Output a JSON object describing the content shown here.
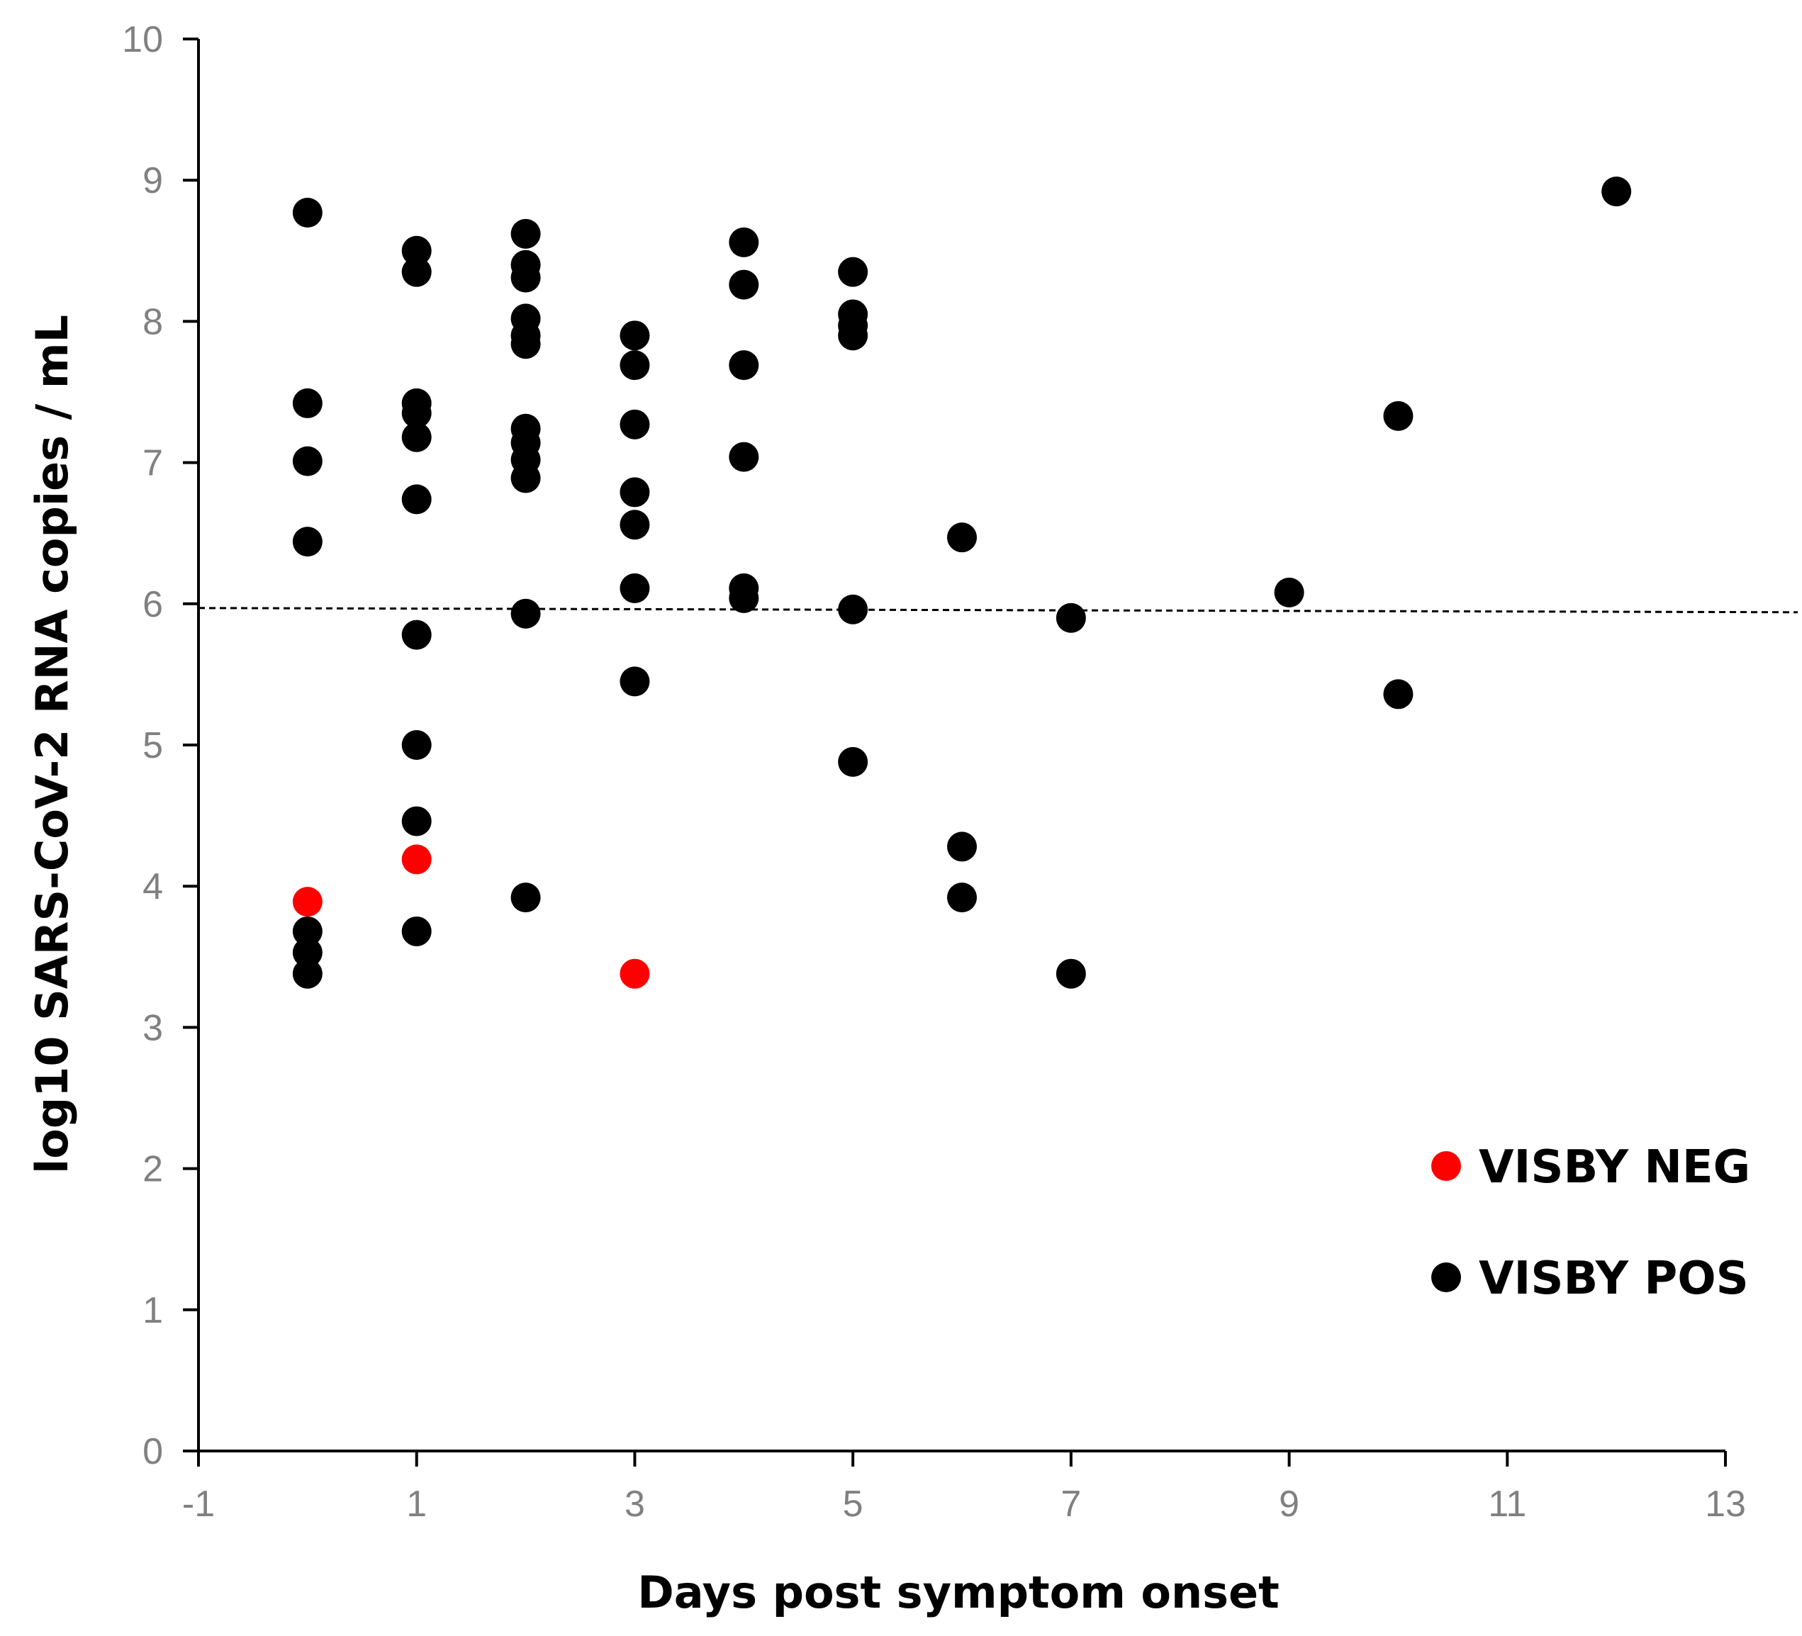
{
  "chart_data": {
    "type": "scatter",
    "title": "",
    "xlabel": "Days post symptom onset",
    "ylabel": "log10 SARS-CoV-2 RNA copies / mL",
    "xlim": [
      -1,
      13
    ],
    "ylim": [
      0,
      10
    ],
    "x_ticks": [
      -1,
      1,
      3,
      5,
      7,
      9,
      11,
      13
    ],
    "y_ticks": [
      0,
      1,
      2,
      3,
      4,
      5,
      6,
      7,
      8,
      9,
      10
    ],
    "grid": false,
    "legend_position": "bottom-right",
    "reference_line": {
      "style": "dashed",
      "y_start": 5.97,
      "y_end": 5.94
    },
    "series": [
      {
        "name": "VISBY NEG",
        "color": "#ff0000",
        "points": [
          {
            "x": 0,
            "y": 3.89
          },
          {
            "x": 1,
            "y": 4.19
          },
          {
            "x": 3,
            "y": 3.38
          }
        ]
      },
      {
        "name": "VISBY POS",
        "color": "#000000",
        "points": [
          {
            "x": 0,
            "y": 8.77
          },
          {
            "x": 0,
            "y": 7.42
          },
          {
            "x": 0,
            "y": 7.01
          },
          {
            "x": 0,
            "y": 6.44
          },
          {
            "x": 0,
            "y": 3.68
          },
          {
            "x": 0,
            "y": 3.53
          },
          {
            "x": 0,
            "y": 3.38
          },
          {
            "x": 1,
            "y": 8.5
          },
          {
            "x": 1,
            "y": 8.35
          },
          {
            "x": 1,
            "y": 7.42
          },
          {
            "x": 1,
            "y": 7.35
          },
          {
            "x": 1,
            "y": 7.18
          },
          {
            "x": 1,
            "y": 6.74
          },
          {
            "x": 1,
            "y": 5.78
          },
          {
            "x": 1,
            "y": 5.0
          },
          {
            "x": 1,
            "y": 4.46
          },
          {
            "x": 1,
            "y": 3.68
          },
          {
            "x": 2,
            "y": 8.62
          },
          {
            "x": 2,
            "y": 8.4
          },
          {
            "x": 2,
            "y": 8.31
          },
          {
            "x": 2,
            "y": 8.02
          },
          {
            "x": 2,
            "y": 7.9
          },
          {
            "x": 2,
            "y": 7.84
          },
          {
            "x": 2,
            "y": 7.24
          },
          {
            "x": 2,
            "y": 7.14
          },
          {
            "x": 2,
            "y": 7.02
          },
          {
            "x": 2,
            "y": 6.89
          },
          {
            "x": 2,
            "y": 5.93
          },
          {
            "x": 2,
            "y": 3.92
          },
          {
            "x": 3,
            "y": 7.9
          },
          {
            "x": 3,
            "y": 7.69
          },
          {
            "x": 3,
            "y": 7.27
          },
          {
            "x": 3,
            "y": 6.79
          },
          {
            "x": 3,
            "y": 6.56
          },
          {
            "x": 3,
            "y": 6.11
          },
          {
            "x": 3,
            "y": 5.45
          },
          {
            "x": 4,
            "y": 8.56
          },
          {
            "x": 4,
            "y": 8.26
          },
          {
            "x": 4,
            "y": 7.69
          },
          {
            "x": 4,
            "y": 7.04
          },
          {
            "x": 4,
            "y": 6.11
          },
          {
            "x": 4,
            "y": 6.04
          },
          {
            "x": 5,
            "y": 8.35
          },
          {
            "x": 5,
            "y": 8.05
          },
          {
            "x": 5,
            "y": 7.97
          },
          {
            "x": 5,
            "y": 7.9
          },
          {
            "x": 5,
            "y": 5.96
          },
          {
            "x": 5,
            "y": 4.88
          },
          {
            "x": 6,
            "y": 6.47
          },
          {
            "x": 6,
            "y": 4.28
          },
          {
            "x": 6,
            "y": 3.92
          },
          {
            "x": 7,
            "y": 5.9
          },
          {
            "x": 7,
            "y": 3.38
          },
          {
            "x": 9,
            "y": 6.08
          },
          {
            "x": 10,
            "y": 7.33
          },
          {
            "x": 10,
            "y": 5.36
          },
          {
            "x": 12,
            "y": 8.92
          }
        ]
      }
    ]
  }
}
